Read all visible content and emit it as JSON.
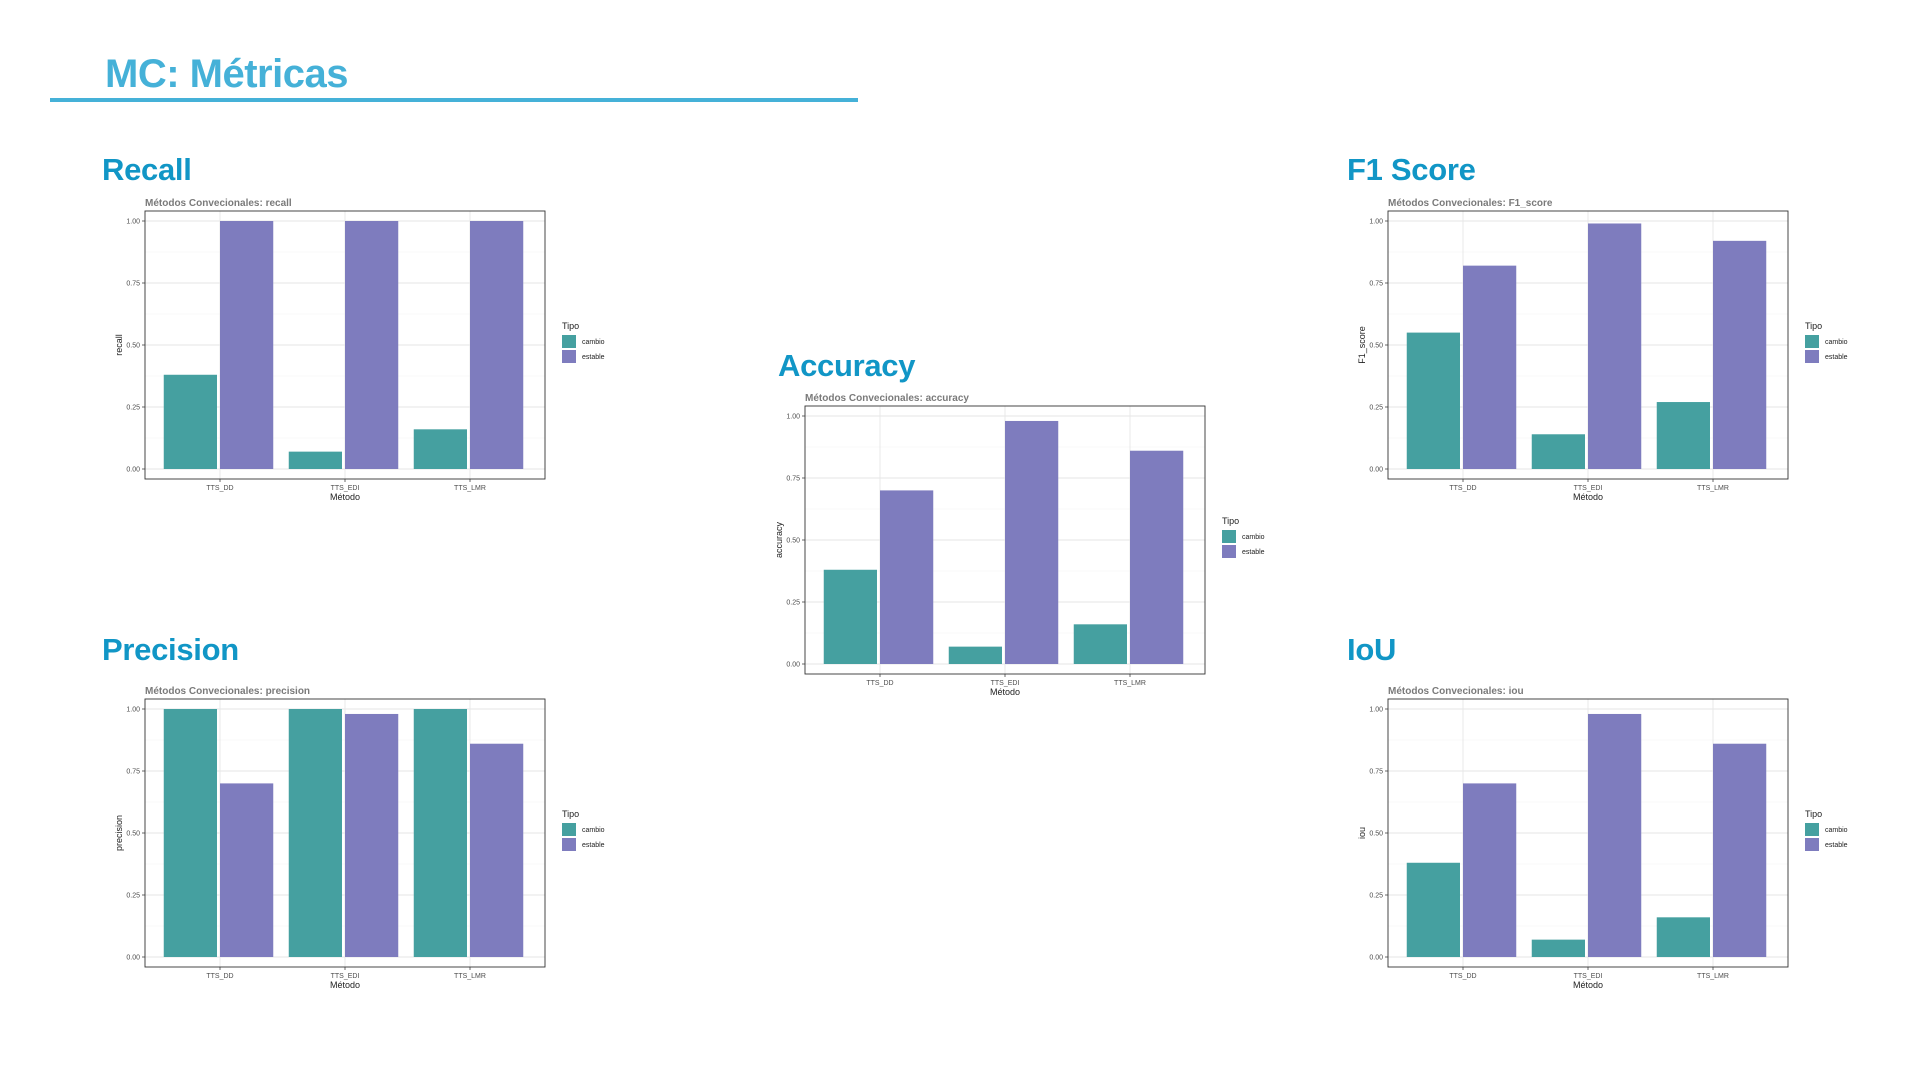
{
  "slide": {
    "title": "MC: Métricas",
    "accent_color": "#45B1D8",
    "section_color": "#1196C6"
  },
  "sections": {
    "recall": "Recall",
    "precision": "Precision",
    "accuracy": "Accuracy",
    "f1": "F1 Score",
    "iou": "IoU"
  },
  "colors": {
    "cambio": "#45A0A0",
    "estable": "#7E7CBE"
  },
  "chart_data": [
    {
      "id": "recall",
      "type": "bar",
      "title": "Métodos Convecionales: recall",
      "xlabel": "Método",
      "ylabel": "recall",
      "categories": [
        "TTS_DD",
        "TTS_EDI",
        "TTS_LMR"
      ],
      "series": [
        {
          "name": "cambio",
          "values": [
            0.38,
            0.07,
            0.16
          ]
        },
        {
          "name": "estable",
          "values": [
            1.0,
            1.0,
            1.0
          ]
        }
      ],
      "ylim": [
        0,
        1.0
      ],
      "yticks": [
        "0.00",
        "0.25",
        "0.50",
        "0.75",
        "1.00"
      ],
      "legend_title": "Tipo",
      "legend_position": "right",
      "grid": true
    },
    {
      "id": "precision",
      "type": "bar",
      "title": "Métodos Convecionales: precision",
      "xlabel": "Método",
      "ylabel": "precision",
      "categories": [
        "TTS_DD",
        "TTS_EDI",
        "TTS_LMR"
      ],
      "series": [
        {
          "name": "cambio",
          "values": [
            1.0,
            1.0,
            1.0
          ]
        },
        {
          "name": "estable",
          "values": [
            0.7,
            0.98,
            0.86
          ]
        }
      ],
      "ylim": [
        0,
        1.0
      ],
      "yticks": [
        "0.00",
        "0.25",
        "0.50",
        "0.75",
        "1.00"
      ],
      "legend_title": "Tipo",
      "legend_position": "right",
      "grid": true
    },
    {
      "id": "accuracy",
      "type": "bar",
      "title": "Métodos Convecionales: accuracy",
      "xlabel": "Método",
      "ylabel": "accuracy",
      "categories": [
        "TTS_DD",
        "TTS_EDI",
        "TTS_LMR"
      ],
      "series": [
        {
          "name": "cambio",
          "values": [
            0.38,
            0.07,
            0.16
          ]
        },
        {
          "name": "estable",
          "values": [
            0.7,
            0.98,
            0.86
          ]
        }
      ],
      "ylim": [
        0,
        1.0
      ],
      "yticks": [
        "0.00",
        "0.25",
        "0.50",
        "0.75",
        "1.00"
      ],
      "legend_title": "Tipo",
      "legend_position": "right",
      "grid": true
    },
    {
      "id": "f1",
      "type": "bar",
      "title": "Métodos Convecionales: F1_score",
      "xlabel": "Método",
      "ylabel": "F1_score",
      "categories": [
        "TTS_DD",
        "TTS_EDI",
        "TTS_LMR"
      ],
      "series": [
        {
          "name": "cambio",
          "values": [
            0.55,
            0.14,
            0.27
          ]
        },
        {
          "name": "estable",
          "values": [
            0.82,
            0.99,
            0.92
          ]
        }
      ],
      "ylim": [
        0,
        1.0
      ],
      "yticks": [
        "0.00",
        "0.25",
        "0.50",
        "0.75",
        "1.00"
      ],
      "legend_title": "Tipo",
      "legend_position": "right",
      "grid": true
    },
    {
      "id": "iou",
      "type": "bar",
      "title": "Métodos Convecionales: iou",
      "xlabel": "Método",
      "ylabel": "iou",
      "categories": [
        "TTS_DD",
        "TTS_EDI",
        "TTS_LMR"
      ],
      "series": [
        {
          "name": "cambio",
          "values": [
            0.38,
            0.07,
            0.16
          ]
        },
        {
          "name": "estable",
          "values": [
            0.7,
            0.98,
            0.86
          ]
        }
      ],
      "ylim": [
        0,
        1.0
      ],
      "yticks": [
        "0.00",
        "0.25",
        "0.50",
        "0.75",
        "1.00"
      ],
      "legend_title": "Tipo",
      "legend_position": "right",
      "grid": true
    }
  ]
}
